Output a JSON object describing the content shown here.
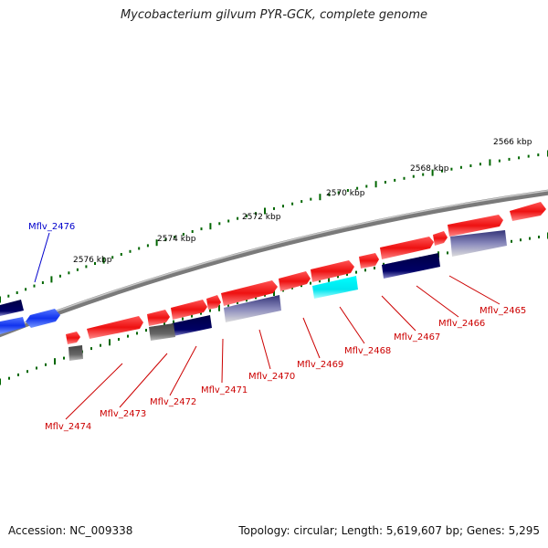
{
  "title": "Mycobacterium gilvum PYR-GCK, complete genome",
  "footer": {
    "accession": "Accession: NC_009338",
    "summary": "Topology: circular; Length: 5,619,607 bp; Genes: 5,295"
  },
  "kbp_labels": [
    "2566 kbp",
    "2568 kbp",
    "2570 kbp",
    "2572 kbp",
    "2574 kbp",
    "2576 kbp"
  ],
  "gene_labels": [
    {
      "text": "Mflv_2476",
      "color": "#0000cc"
    },
    {
      "text": "Mflv_2474",
      "color": "#cc0000"
    },
    {
      "text": "Mflv_2473",
      "color": "#cc0000"
    },
    {
      "text": "Mflv_2472",
      "color": "#cc0000"
    },
    {
      "text": "Mflv_2471",
      "color": "#cc0000"
    },
    {
      "text": "Mflv_2470",
      "color": "#cc0000"
    },
    {
      "text": "Mflv_2469",
      "color": "#cc0000"
    },
    {
      "text": "Mflv_2468",
      "color": "#cc0000"
    },
    {
      "text": "Mflv_2467",
      "color": "#cc0000"
    },
    {
      "text": "Mflv_2466",
      "color": "#cc0000"
    },
    {
      "text": "Mflv_2465",
      "color": "#cc0000"
    }
  ],
  "colors": {
    "forward_gene": "#ee1111",
    "reverse_gene": "#1133ee",
    "dark_navy": "#000066",
    "cyan": "#00e5ee",
    "gray": "#666666",
    "tick": "#006600",
    "backbone": "#888888"
  }
}
